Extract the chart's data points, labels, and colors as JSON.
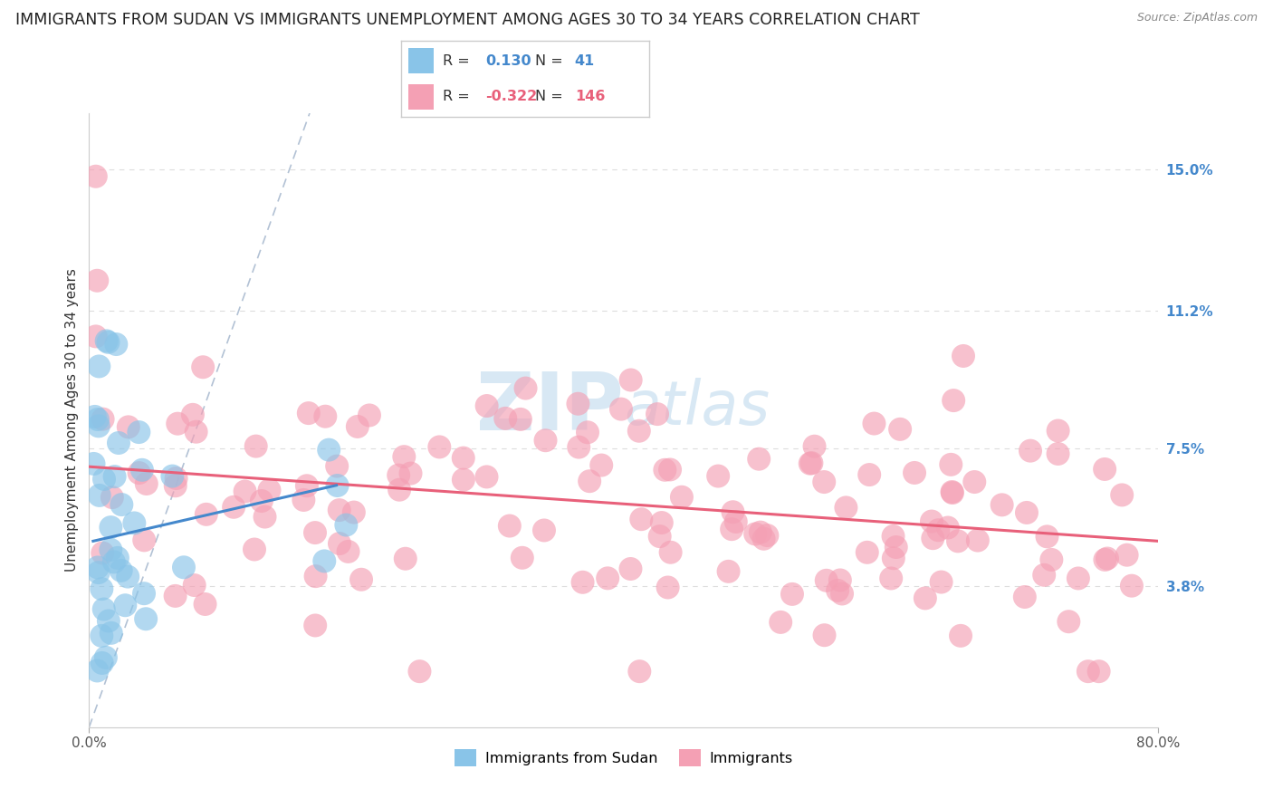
{
  "title": "IMMIGRANTS FROM SUDAN VS IMMIGRANTS UNEMPLOYMENT AMONG AGES 30 TO 34 YEARS CORRELATION CHART",
  "source": "Source: ZipAtlas.com",
  "ylabel": "Unemployment Among Ages 30 to 34 years",
  "xlim": [
    0.0,
    0.8
  ],
  "ylim": [
    0.0,
    0.165
  ],
  "ytick_vals": [
    0.038,
    0.075,
    0.112,
    0.15
  ],
  "ytick_labels": [
    "3.8%",
    "7.5%",
    "11.2%",
    "15.0%"
  ],
  "xtick_vals": [
    0.0,
    0.8
  ],
  "xtick_labels": [
    "0.0%",
    "80.0%"
  ],
  "r_sudan": 0.13,
  "n_sudan": 41,
  "r_immigrants": -0.322,
  "n_immigrants": 146,
  "legend_labels": [
    "Immigrants from Sudan",
    "Immigrants"
  ],
  "blue_color": "#89C4E8",
  "pink_color": "#F4A0B4",
  "blue_line_color": "#4488CC",
  "pink_line_color": "#E8607A",
  "dashed_line_color": "#AABBD0",
  "background_color": "#FFFFFF",
  "title_fontsize": 12.5,
  "axis_label_fontsize": 11,
  "tick_fontsize": 11,
  "tick_color": "#4488CC",
  "watermark_color": "#D8E8F4",
  "grid_color": "#DDDDDD"
}
